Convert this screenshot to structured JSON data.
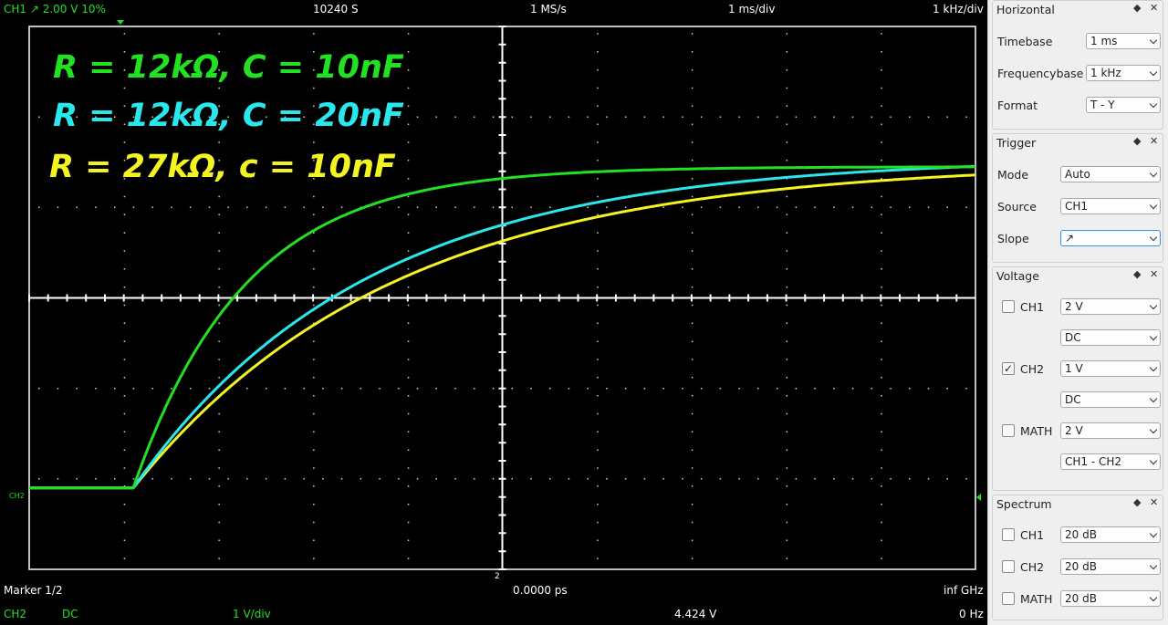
{
  "scope": {
    "top": {
      "trigger_info": "CH1  ↗  2.00 V  10%",
      "samples": "10240 S",
      "samplerate": "1 MS/s",
      "timebase": "1 ms/div",
      "freqbase": "1 kHz/div"
    },
    "bottom": {
      "marker": "Marker 1/2",
      "time_value": "0.0000 ps",
      "freq_value": "inf GHz",
      "ch2_label": "CH2",
      "coupling": "DC",
      "volts_div": "1 V/div",
      "voltage": "4.424 V",
      "freq": "0 Hz",
      "marker_num": "2"
    },
    "ch2_marker": "CH2",
    "legend": [
      {
        "text": "R = 12kΩ, C = 10nF",
        "color": "#22e022"
      },
      {
        "text": "R = 12kΩ, C = 20nF",
        "color": "#28e8ee"
      },
      {
        "text": "R = 27kΩ, c = 10nF",
        "color": "#f4f422"
      }
    ],
    "colors": {
      "green": "#22e022",
      "cyan": "#28e8ee",
      "yellow": "#f4f422",
      "grid": "#ffffff"
    }
  },
  "chart_data": {
    "type": "line",
    "xlabel": "",
    "ylabel": "",
    "xlim": [
      -5,
      5
    ],
    "ylim": [
      -3,
      3
    ],
    "grid": true,
    "series": [
      {
        "name": "R = 12kΩ, C = 10nF",
        "t0": -3.9,
        "y0": -2.1,
        "yinf": 1.45,
        "tau": 1.18
      },
      {
        "name": "R = 12kΩ, C = 20nF",
        "t0": -3.9,
        "y0": -2.1,
        "yinf": 1.55,
        "tau": 2.45
      },
      {
        "name": "R = 27kΩ, c = 10nF",
        "t0": -3.9,
        "y0": -2.1,
        "yinf": 1.5,
        "tau": 2.75
      }
    ]
  },
  "panel": {
    "horizontal": {
      "title": "Horizontal",
      "timebase_label": "Timebase",
      "timebase_value": "1 ms",
      "freq_label": "Frequencybase",
      "freq_value": "1 kHz",
      "format_label": "Format",
      "format_value": "T - Y"
    },
    "trigger": {
      "title": "Trigger",
      "mode_label": "Mode",
      "mode_value": "Auto",
      "source_label": "Source",
      "source_value": "CH1",
      "slope_label": "Slope",
      "slope_value": "↗"
    },
    "voltage": {
      "title": "Voltage",
      "ch1_label": "CH1",
      "ch1_gain": "2 V",
      "ch1_coupling": "DC",
      "ch2_label": "CH2",
      "ch2_gain": "1 V",
      "ch2_coupling": "DC",
      "math_label": "MATH",
      "math_gain": "2 V",
      "math_mode": "CH1 - CH2",
      "ch2_checked": "✓"
    },
    "spectrum": {
      "title": "Spectrum",
      "ch1_label": "CH1",
      "ch1_value": "20 dB",
      "ch2_label": "CH2",
      "ch2_value": "20 dB",
      "math_label": "MATH",
      "math_value": "20 dB"
    },
    "dock_icons": {
      "float": "◆",
      "close": "✕"
    }
  }
}
